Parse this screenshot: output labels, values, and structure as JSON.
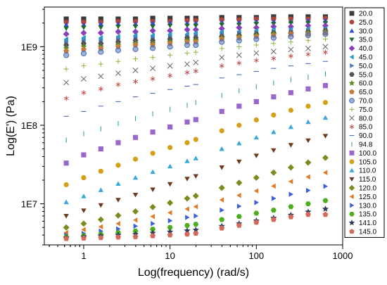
{
  "chart_data": {
    "type": "scatter",
    "xlabel": "Log(frequency) (rad/s)",
    "ylabel": "Log(E') (Pa)",
    "x_scale": "log",
    "y_scale": "log",
    "xlim": [
      0.35,
      1000
    ],
    "ylim": [
      3000000,
      3200000000
    ],
    "x_ticks": [
      {
        "value": 1,
        "label": "1"
      },
      {
        "value": 10,
        "label": "10"
      },
      {
        "value": 100,
        "label": "100"
      },
      {
        "value": 1000,
        "label": "1000"
      }
    ],
    "y_ticks": [
      {
        "value": 10000000,
        "label": "1E7"
      },
      {
        "value": 100000000,
        "label": "1E8"
      },
      {
        "value": 1000000000,
        "label": "1E9"
      }
    ],
    "grid": false,
    "legend_position": "right",
    "x": [
      0.628,
      1.0,
      1.58,
      2.51,
      3.98,
      6.31,
      10.0,
      15.8,
      19.9,
      39.8,
      63.1,
      100.0,
      158.5,
      251.2,
      398.1,
      631.0
    ],
    "series": [
      {
        "name": "20.0",
        "marker": "square",
        "color": "#3a3a3a",
        "values": [
          2250000000.0,
          2250000000.0,
          2250000000.0,
          2250000000.0,
          2250000000.0,
          2300000000.0,
          2300000000.0,
          2300000000.0,
          2300000000.0,
          2350000000.0,
          2350000000.0,
          2350000000.0,
          2400000000.0,
          2400000000.0,
          2400000000.0,
          2400000000.0
        ]
      },
      {
        "name": "25.0",
        "marker": "circle",
        "color": "#b3443c",
        "values": [
          2050000000.0,
          2050000000.0,
          2050000000.0,
          2100000000.0,
          2100000000.0,
          2100000000.0,
          2100000000.0,
          2150000000.0,
          2150000000.0,
          2200000000.0,
          2200000000.0,
          2250000000.0,
          2250000000.0,
          2250000000.0,
          2250000000.0,
          2300000000.0
        ]
      },
      {
        "name": "30.0",
        "marker": "triangle-up",
        "color": "#2b4fd6",
        "values": [
          1900000000.0,
          1900000000.0,
          1950000000.0,
          1950000000.0,
          1950000000.0,
          2000000000.0,
          2000000000.0,
          2000000000.0,
          2000000000.0,
          2050000000.0,
          2050000000.0,
          2100000000.0,
          2100000000.0,
          2100000000.0,
          2150000000.0,
          2150000000.0
        ]
      },
      {
        "name": "35.0",
        "marker": "triangle-down",
        "color": "#1f6b2b",
        "values": [
          1700000000.0,
          1750000000.0,
          1750000000.0,
          1800000000.0,
          1800000000.0,
          1800000000.0,
          1850000000.0,
          1850000000.0,
          1850000000.0,
          1900000000.0,
          1900000000.0,
          1950000000.0,
          1950000000.0,
          2000000000.0,
          2000000000.0,
          2000000000.0
        ]
      },
      {
        "name": "40.0",
        "marker": "diamond",
        "color": "#8a3fb8",
        "values": [
          1450000000.0,
          1500000000.0,
          1500000000.0,
          1550000000.0,
          1550000000.0,
          1600000000.0,
          1600000000.0,
          1650000000.0,
          1650000000.0,
          1700000000.0,
          1750000000.0,
          1750000000.0,
          1800000000.0,
          1800000000.0,
          1850000000.0,
          1850000000.0
        ]
      },
      {
        "name": "45.0",
        "marker": "triangle-left",
        "color": "#2a9cc4",
        "values": [
          1250000000.0,
          1300000000.0,
          1300000000.0,
          1350000000.0,
          1400000000.0,
          1400000000.0,
          1450000000.0,
          1450000000.0,
          1500000000.0,
          1550000000.0,
          1550000000.0,
          1600000000.0,
          1650000000.0,
          1650000000.0,
          1700000000.0,
          1700000000.0
        ]
      },
      {
        "name": "50.0",
        "marker": "triangle-right",
        "color": "#4a78c4",
        "values": [
          1150000000.0,
          1200000000.0,
          1200000000.0,
          1250000000.0,
          1300000000.0,
          1300000000.0,
          1350000000.0,
          1350000000.0,
          1400000000.0,
          1450000000.0,
          1500000000.0,
          1500000000.0,
          1550000000.0,
          1600000000.0,
          1600000000.0,
          1650000000.0
        ]
      },
      {
        "name": "55.0",
        "marker": "hexagon",
        "color": "#555555",
        "values": [
          1050000000.0,
          1100000000.0,
          1100000000.0,
          1150000000.0,
          1200000000.0,
          1200000000.0,
          1250000000.0,
          1300000000.0,
          1300000000.0,
          1350000000.0,
          1400000000.0,
          1450000000.0,
          1500000000.0,
          1500000000.0,
          1550000000.0,
          1600000000.0
        ]
      },
      {
        "name": "60.0",
        "marker": "star",
        "color": "#5a8c1e",
        "values": [
          950000000.0,
          1000000000.0,
          1000000000.0,
          1050000000.0,
          1100000000.0,
          1100000000.0,
          1150000000.0,
          1200000000.0,
          1200000000.0,
          1300000000.0,
          1350000000.0,
          1400000000.0,
          1450000000.0,
          1450000000.0,
          1500000000.0,
          1550000000.0
        ]
      },
      {
        "name": "65.0",
        "marker": "pentagon",
        "color": "#c87a3a",
        "values": [
          880000000.0,
          920000000.0,
          950000000.0,
          1000000000.0,
          1050000000.0,
          1050000000.0,
          1100000000.0,
          1150000000.0,
          1150000000.0,
          1250000000.0,
          1300000000.0,
          1350000000.0,
          1400000000.0,
          1450000000.0,
          1450000000.0,
          1500000000.0
        ]
      },
      {
        "name": "70.0",
        "marker": "circle-open",
        "color": "#4a6fb8",
        "values": [
          780000000.0,
          820000000.0,
          860000000.0,
          900000000.0,
          930000000.0,
          960000000.0,
          1000000000.0,
          1050000000.0,
          1050000000.0,
          1150000000.0,
          1200000000.0,
          1250000000.0,
          1300000000.0,
          1350000000.0,
          1400000000.0,
          1450000000.0
        ]
      },
      {
        "name": "75.0",
        "marker": "plus",
        "color": "#8ab83a",
        "values": [
          520000000.0,
          570000000.0,
          600000000.0,
          650000000.0,
          700000000.0,
          730000000.0,
          780000000.0,
          830000000.0,
          850000000.0,
          950000000.0,
          1000000000.0,
          1050000000.0,
          1100000000.0,
          1150000000.0,
          1200000000.0,
          1250000000.0
        ]
      },
      {
        "name": "80.0",
        "marker": "cross",
        "color": "#666666",
        "values": [
          350000000.0,
          390000000.0,
          420000000.0,
          460000000.0,
          500000000.0,
          530000000.0,
          570000000.0,
          600000000.0,
          630000000.0,
          730000000.0,
          780000000.0,
          830000000.0,
          870000000.0,
          920000000.0,
          950000000.0,
          1000000000.0
        ]
      },
      {
        "name": "85.0",
        "marker": "asterisk",
        "color": "#c0504d",
        "values": [
          220000000.0,
          260000000.0,
          290000000.0,
          330000000.0,
          360000000.0,
          390000000.0,
          430000000.0,
          470000000.0,
          490000000.0,
          570000000.0,
          620000000.0,
          670000000.0,
          710000000.0,
          760000000.0,
          800000000.0,
          850000000.0
        ]
      },
      {
        "name": "90.0",
        "marker": "hline",
        "color": "#3a5fb8",
        "values": [
          130000000.0,
          150000000.0,
          175000000.0,
          200000000.0,
          230000000.0,
          255000000.0,
          285000000.0,
          315000000.0,
          330000000.0,
          400000000.0,
          440000000.0,
          485000000.0,
          530000000.0,
          570000000.0,
          610000000.0,
          650000000.0
        ]
      },
      {
        "name": "94.8",
        "marker": "vline",
        "color": "#2a9c8c",
        "values": [
          65000000.0,
          78000000.0,
          90000000.0,
          105000000.0,
          122000000.0,
          140000000.0,
          160000000.0,
          180000000.0,
          195000000.0,
          240000000.0,
          275000000.0,
          310000000.0,
          345000000.0,
          380000000.0,
          410000000.0,
          450000000.0
        ]
      },
      {
        "name": "100.0",
        "marker": "square",
        "color": "#9966cc",
        "values": [
          33000000.0,
          42000000.0,
          50000000.0,
          60000000.0,
          70000000.0,
          82000000.0,
          95000000.0,
          110000000.0,
          118000000.0,
          150000000.0,
          175000000.0,
          200000000.0,
          230000000.0,
          260000000.0,
          290000000.0,
          320000000.0
        ]
      },
      {
        "name": "105.0",
        "marker": "circle",
        "color": "#d4a017",
        "values": [
          17500000.0,
          21500000.0,
          26000000.0,
          31000000.0,
          37000000.0,
          44000000.0,
          52000000.0,
          60000000.0,
          66000000.0,
          85000000.0,
          100000000.0,
          117000000.0,
          135000000.0,
          155000000.0,
          175000000.0,
          195000000.0
        ]
      },
      {
        "name": "110.0",
        "marker": "triangle-up",
        "color": "#3aa8d8",
        "values": [
          10500000.0,
          12500000.0,
          15000000.0,
          18000000.0,
          21500000.0,
          25500000.0,
          30000000.0,
          35000000.0,
          38000000.0,
          50000000.0,
          59000000.0,
          70000000.0,
          82000000.0,
          95000000.0,
          110000000.0,
          125000000.0
        ]
      },
      {
        "name": "115.0",
        "marker": "triangle-down",
        "color": "#6b3a1e",
        "values": [
          7000000.0,
          8200000.0,
          9600000.0,
          11200000.0,
          13000000.0,
          15200000.0,
          17800000.0,
          20800000.0,
          22500000.0,
          29000000.0,
          34500000.0,
          41000000.0,
          48000000.0,
          56000000.0,
          64000000.0,
          73000000.0
        ]
      },
      {
        "name": "120.0",
        "marker": "diamond",
        "color": "#7a8c1e",
        "values": [
          5000000.0,
          5600000.0,
          6300000.0,
          7100000.0,
          8000000.0,
          9100000.0,
          10300000.0,
          11700000.0,
          12600000.0,
          16000000.0,
          18500000.0,
          21500000.0,
          25000000.0,
          29000000.0,
          33500000.0,
          38500000.0
        ]
      },
      {
        "name": "125.0",
        "marker": "triangle-left",
        "color": "#e07b28",
        "values": [
          4300000.0,
          4700000.0,
          5100000.0,
          5600000.0,
          6200000.0,
          6900000.0,
          7700000.0,
          8600000.0,
          9200000.0,
          11200000.0,
          12800000.0,
          14600000.0,
          16800000.0,
          19200000.0,
          22000000.0,
          25000000.0
        ]
      },
      {
        "name": "130.0",
        "marker": "triangle-right",
        "color": "#3a5fd8",
        "values": [
          4000000.0,
          4200000.0,
          4500000.0,
          4800000.0,
          5200000.0,
          5600000.0,
          6100000.0,
          6700000.0,
          7000000.0,
          8300000.0,
          9300000.0,
          10400000.0,
          11700000.0,
          13200000.0,
          14800000.0,
          16700000.0
        ]
      },
      {
        "name": "135.0",
        "marker": "hexagon",
        "color": "#4cae1e",
        "values": [
          3800000.0,
          3950000.0,
          4100000.0,
          4300000.0,
          4500000.0,
          4750000.0,
          5000000.0,
          5300000.0,
          5500000.0,
          6300000.0,
          6900000.0,
          7600000.0,
          8300000.0,
          9200000.0,
          10000000.0,
          11000000.0
        ]
      },
      {
        "name": "141.0",
        "marker": "star",
        "color": "#2e3a5a",
        "values": [
          3700000.0,
          3800000.0,
          3900000.0,
          4000000.0,
          4100000.0,
          4250000.0,
          4400000.0,
          4550000.0,
          4650000.0,
          5200000.0,
          5600000.0,
          6100000.0,
          6600000.0,
          7200000.0,
          7900000.0,
          8600000.0
        ]
      },
      {
        "name": "145.0",
        "marker": "pentagon",
        "color": "#d46a5a",
        "values": [
          3600000.0,
          3650000.0,
          3700000.0,
          3750000.0,
          3800000.0,
          3900000.0,
          4000000.0,
          4100000.0,
          4200000.0,
          4900000.0,
          5300000.0,
          5800000.0,
          6300000.0,
          6800000.0,
          7300000.0,
          7300000.0
        ]
      }
    ]
  }
}
